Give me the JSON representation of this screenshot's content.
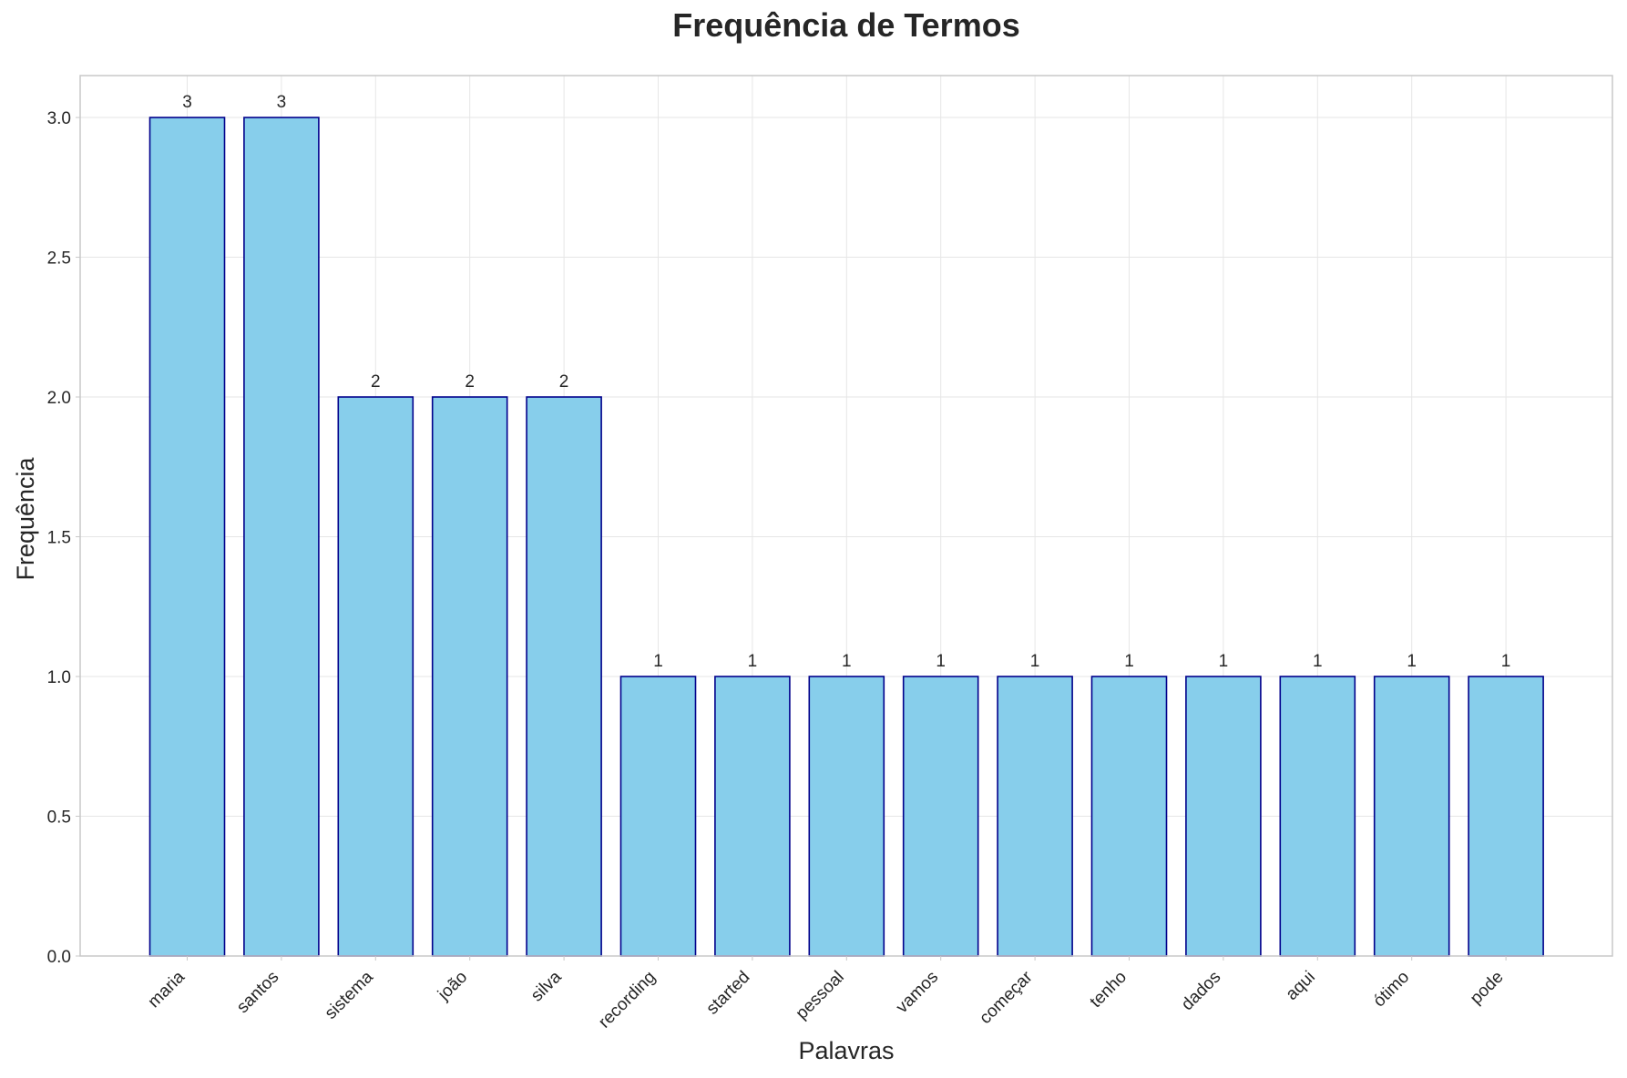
{
  "chart_data": {
    "type": "bar",
    "title": "Frequência de Termos",
    "xlabel": "Palavras",
    "ylabel": "Frequência",
    "categories": [
      "maria",
      "santos",
      "sistema",
      "joão",
      "silva",
      "recording",
      "started",
      "pessoal",
      "vamos",
      "começar",
      "tenho",
      "dados",
      "aqui",
      "ótimo",
      "pode"
    ],
    "values": [
      3,
      3,
      2,
      2,
      2,
      1,
      1,
      1,
      1,
      1,
      1,
      1,
      1,
      1,
      1
    ],
    "data_labels": [
      "3",
      "3",
      "2",
      "2",
      "2",
      "1",
      "1",
      "1",
      "1",
      "1",
      "1",
      "1",
      "1",
      "1",
      "1"
    ],
    "ylim": [
      0,
      3.15
    ],
    "yticks": [
      0.0,
      0.5,
      1.0,
      1.5,
      2.0,
      2.5,
      3.0
    ],
    "ytick_labels": [
      "0.0",
      "0.5",
      "1.0",
      "1.5",
      "2.0",
      "2.5",
      "3.0"
    ],
    "grid": true,
    "legend": "none",
    "colors": {
      "bar_fill": "#87ceeb",
      "bar_edge": "#00008b"
    }
  }
}
